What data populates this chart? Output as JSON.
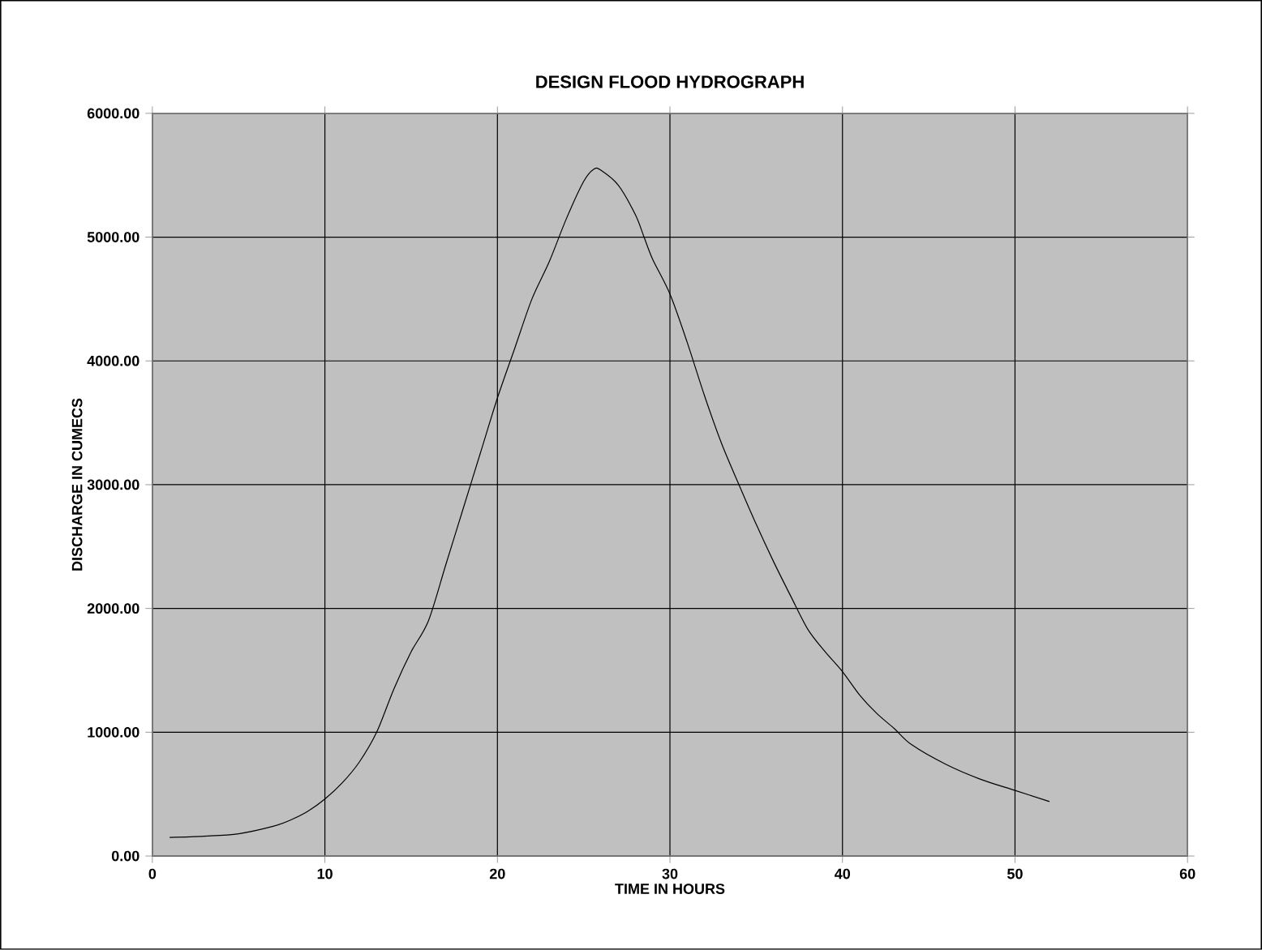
{
  "chart_data": {
    "type": "line",
    "title": "DESIGN FLOOD HYDROGRAPH",
    "xlabel": "TIME IN HOURS",
    "ylabel": "DISCHARGE IN CUMECS",
    "x": [
      1,
      3,
      5,
      7,
      8,
      9,
      10,
      11,
      12,
      13,
      14,
      15,
      16,
      17,
      18,
      19,
      20,
      21,
      22,
      23,
      24,
      25,
      25.6,
      26,
      27,
      28,
      28.5,
      29,
      30,
      31,
      32,
      33,
      34,
      35,
      36,
      37,
      38,
      39,
      40,
      41,
      42,
      43,
      44,
      46,
      48,
      50,
      52
    ],
    "series": [
      {
        "color": "#000000",
        "values": [
          150,
          160,
          180,
          240,
          290,
          360,
          460,
          590,
          760,
          1000,
          1350,
          1650,
          1900,
          2350,
          2800,
          3250,
          3700,
          4100,
          4500,
          4800,
          5150,
          5450,
          5550,
          5540,
          5420,
          5180,
          5000,
          4820,
          4540,
          4150,
          3720,
          3330,
          3000,
          2680,
          2380,
          2100,
          1830,
          1650,
          1490,
          1300,
          1150,
          1030,
          900,
          740,
          620,
          530,
          440
        ]
      }
    ],
    "xlim": [
      0,
      60
    ],
    "xticks": [
      0,
      10,
      20,
      30,
      40,
      50,
      60
    ],
    "ylim": [
      0,
      6000
    ],
    "yticks": [
      {
        "value": 0,
        "label": "0.00"
      },
      {
        "value": 1000,
        "label": "1000.00"
      },
      {
        "value": 2000,
        "label": "2000.00"
      },
      {
        "value": 3000,
        "label": "3000.00"
      },
      {
        "value": 4000,
        "label": "4000.00"
      },
      {
        "value": 5000,
        "label": "5000.00"
      },
      {
        "value": 6000,
        "label": "6000.00"
      }
    ],
    "grid": true,
    "marker": "none",
    "line_style": "solid"
  }
}
